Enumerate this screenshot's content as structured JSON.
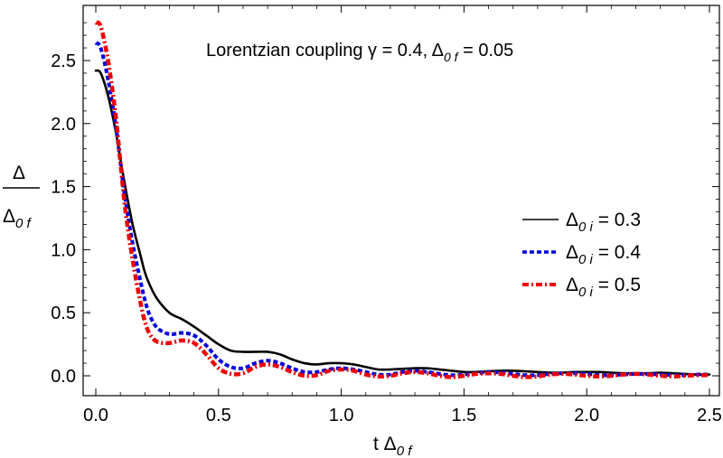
{
  "chart_data": {
    "type": "line",
    "title": "Lorentzian coupling γ = 0.4, Δ",
    "title_sub": "0 f",
    "title_tail": " = 0.05",
    "xlabel": "t Δ",
    "xlabel_sub": "0 f",
    "ylabel_num": "Δ",
    "ylabel_den": "Δ",
    "ylabel_den_sub": "0 f",
    "xlim": [
      -0.05,
      2.55
    ],
    "ylim": [
      -0.17,
      2.9
    ],
    "xticks": [
      0.0,
      0.5,
      1.0,
      1.5,
      2.0,
      2.5
    ],
    "xtick_labels": [
      "0.0",
      "0.5",
      "1.0",
      "1.5",
      "2.0",
      "2.5"
    ],
    "yticks": [
      0.0,
      0.5,
      1.0,
      1.5,
      2.0,
      2.5
    ],
    "ytick_labels": [
      "0.0",
      "0.5",
      "1.0",
      "1.5",
      "2.0",
      "2.5"
    ],
    "grid": false,
    "legend_position": "right",
    "series": [
      {
        "name": "Δ",
        "label_sub": "0 i",
        "label_tail": " = 0.3",
        "color": "#000000",
        "style": "solid",
        "x": [
          0.0,
          0.02,
          0.05,
          0.08,
          0.1,
          0.12,
          0.15,
          0.18,
          0.2,
          0.22,
          0.25,
          0.3,
          0.35,
          0.4,
          0.45,
          0.5,
          0.55,
          0.6,
          0.65,
          0.7,
          0.75,
          0.8,
          0.85,
          0.9,
          0.95,
          1.0,
          1.05,
          1.1,
          1.15,
          1.2,
          1.25,
          1.3,
          1.35,
          1.4,
          1.45,
          1.5,
          1.55,
          1.6,
          1.65,
          1.7,
          1.75,
          1.8,
          1.85,
          1.9,
          1.95,
          2.0,
          2.05,
          2.1,
          2.15,
          2.2,
          2.25,
          2.3,
          2.35,
          2.4,
          2.45,
          2.5
        ],
        "y": [
          2.42,
          2.4,
          2.22,
          1.95,
          1.72,
          1.5,
          1.2,
          0.97,
          0.82,
          0.72,
          0.61,
          0.5,
          0.45,
          0.39,
          0.32,
          0.25,
          0.2,
          0.19,
          0.19,
          0.19,
          0.17,
          0.13,
          0.1,
          0.09,
          0.1,
          0.1,
          0.09,
          0.07,
          0.05,
          0.05,
          0.055,
          0.06,
          0.06,
          0.05,
          0.04,
          0.03,
          0.03,
          0.035,
          0.04,
          0.04,
          0.035,
          0.03,
          0.025,
          0.025,
          0.03,
          0.03,
          0.03,
          0.025,
          0.02,
          0.02,
          0.02,
          0.025,
          0.02,
          0.015,
          0.01,
          0.01
        ]
      },
      {
        "name": "Δ",
        "label_sub": "0 i",
        "label_tail": " = 0.4",
        "color": "#0000dd",
        "style": "dotted",
        "x": [
          0.0,
          0.02,
          0.05,
          0.08,
          0.1,
          0.12,
          0.15,
          0.18,
          0.2,
          0.22,
          0.25,
          0.3,
          0.35,
          0.4,
          0.45,
          0.5,
          0.55,
          0.6,
          0.65,
          0.7,
          0.75,
          0.8,
          0.85,
          0.9,
          0.95,
          1.0,
          1.05,
          1.1,
          1.15,
          1.2,
          1.25,
          1.3,
          1.35,
          1.4,
          1.45,
          1.5,
          1.55,
          1.6,
          1.65,
          1.7,
          1.75,
          1.8,
          1.85,
          1.9,
          1.95,
          2.0,
          2.05,
          2.1,
          2.15,
          2.2,
          2.25,
          2.3,
          2.35,
          2.4,
          2.45,
          2.5
        ],
        "y": [
          2.64,
          2.6,
          2.35,
          2.0,
          1.7,
          1.4,
          1.05,
          0.77,
          0.6,
          0.48,
          0.38,
          0.33,
          0.34,
          0.32,
          0.24,
          0.13,
          0.07,
          0.06,
          0.1,
          0.12,
          0.1,
          0.06,
          0.03,
          0.03,
          0.05,
          0.06,
          0.05,
          0.03,
          0.01,
          0.01,
          0.03,
          0.04,
          0.03,
          0.015,
          0.005,
          0.01,
          0.02,
          0.03,
          0.025,
          0.015,
          0.005,
          0.005,
          0.015,
          0.02,
          0.02,
          0.015,
          0.005,
          0.005,
          0.01,
          0.015,
          0.015,
          0.01,
          0.005,
          0.005,
          0.01,
          0.01
        ]
      },
      {
        "name": "Δ",
        "label_sub": "0 i",
        "label_tail": " = 0.5",
        "color": "#ee0000",
        "style": "dashdot",
        "x": [
          0.0,
          0.02,
          0.05,
          0.08,
          0.1,
          0.12,
          0.15,
          0.18,
          0.2,
          0.22,
          0.25,
          0.3,
          0.35,
          0.4,
          0.45,
          0.5,
          0.55,
          0.6,
          0.65,
          0.7,
          0.75,
          0.8,
          0.85,
          0.9,
          0.95,
          1.0,
          1.05,
          1.1,
          1.15,
          1.2,
          1.25,
          1.3,
          1.35,
          1.4,
          1.45,
          1.5,
          1.55,
          1.6,
          1.65,
          1.7,
          1.75,
          1.8,
          1.85,
          1.9,
          1.95,
          2.0,
          2.05,
          2.1,
          2.15,
          2.2,
          2.25,
          2.3,
          2.35,
          2.4,
          2.45,
          2.5
        ],
        "y": [
          2.8,
          2.77,
          2.5,
          2.08,
          1.7,
          1.32,
          0.92,
          0.6,
          0.43,
          0.33,
          0.27,
          0.26,
          0.28,
          0.26,
          0.17,
          0.06,
          0.015,
          0.02,
          0.07,
          0.09,
          0.07,
          0.03,
          0.0,
          0.005,
          0.04,
          0.05,
          0.04,
          0.01,
          -0.005,
          0.0,
          0.02,
          0.03,
          0.02,
          0.0,
          -0.01,
          0.0,
          0.015,
          0.02,
          0.015,
          0.0,
          -0.01,
          -0.005,
          0.01,
          0.015,
          0.01,
          0.0,
          -0.005,
          0.0,
          0.01,
          0.015,
          0.01,
          0.0,
          -0.005,
          0.0,
          0.005,
          0.005
        ]
      }
    ]
  }
}
